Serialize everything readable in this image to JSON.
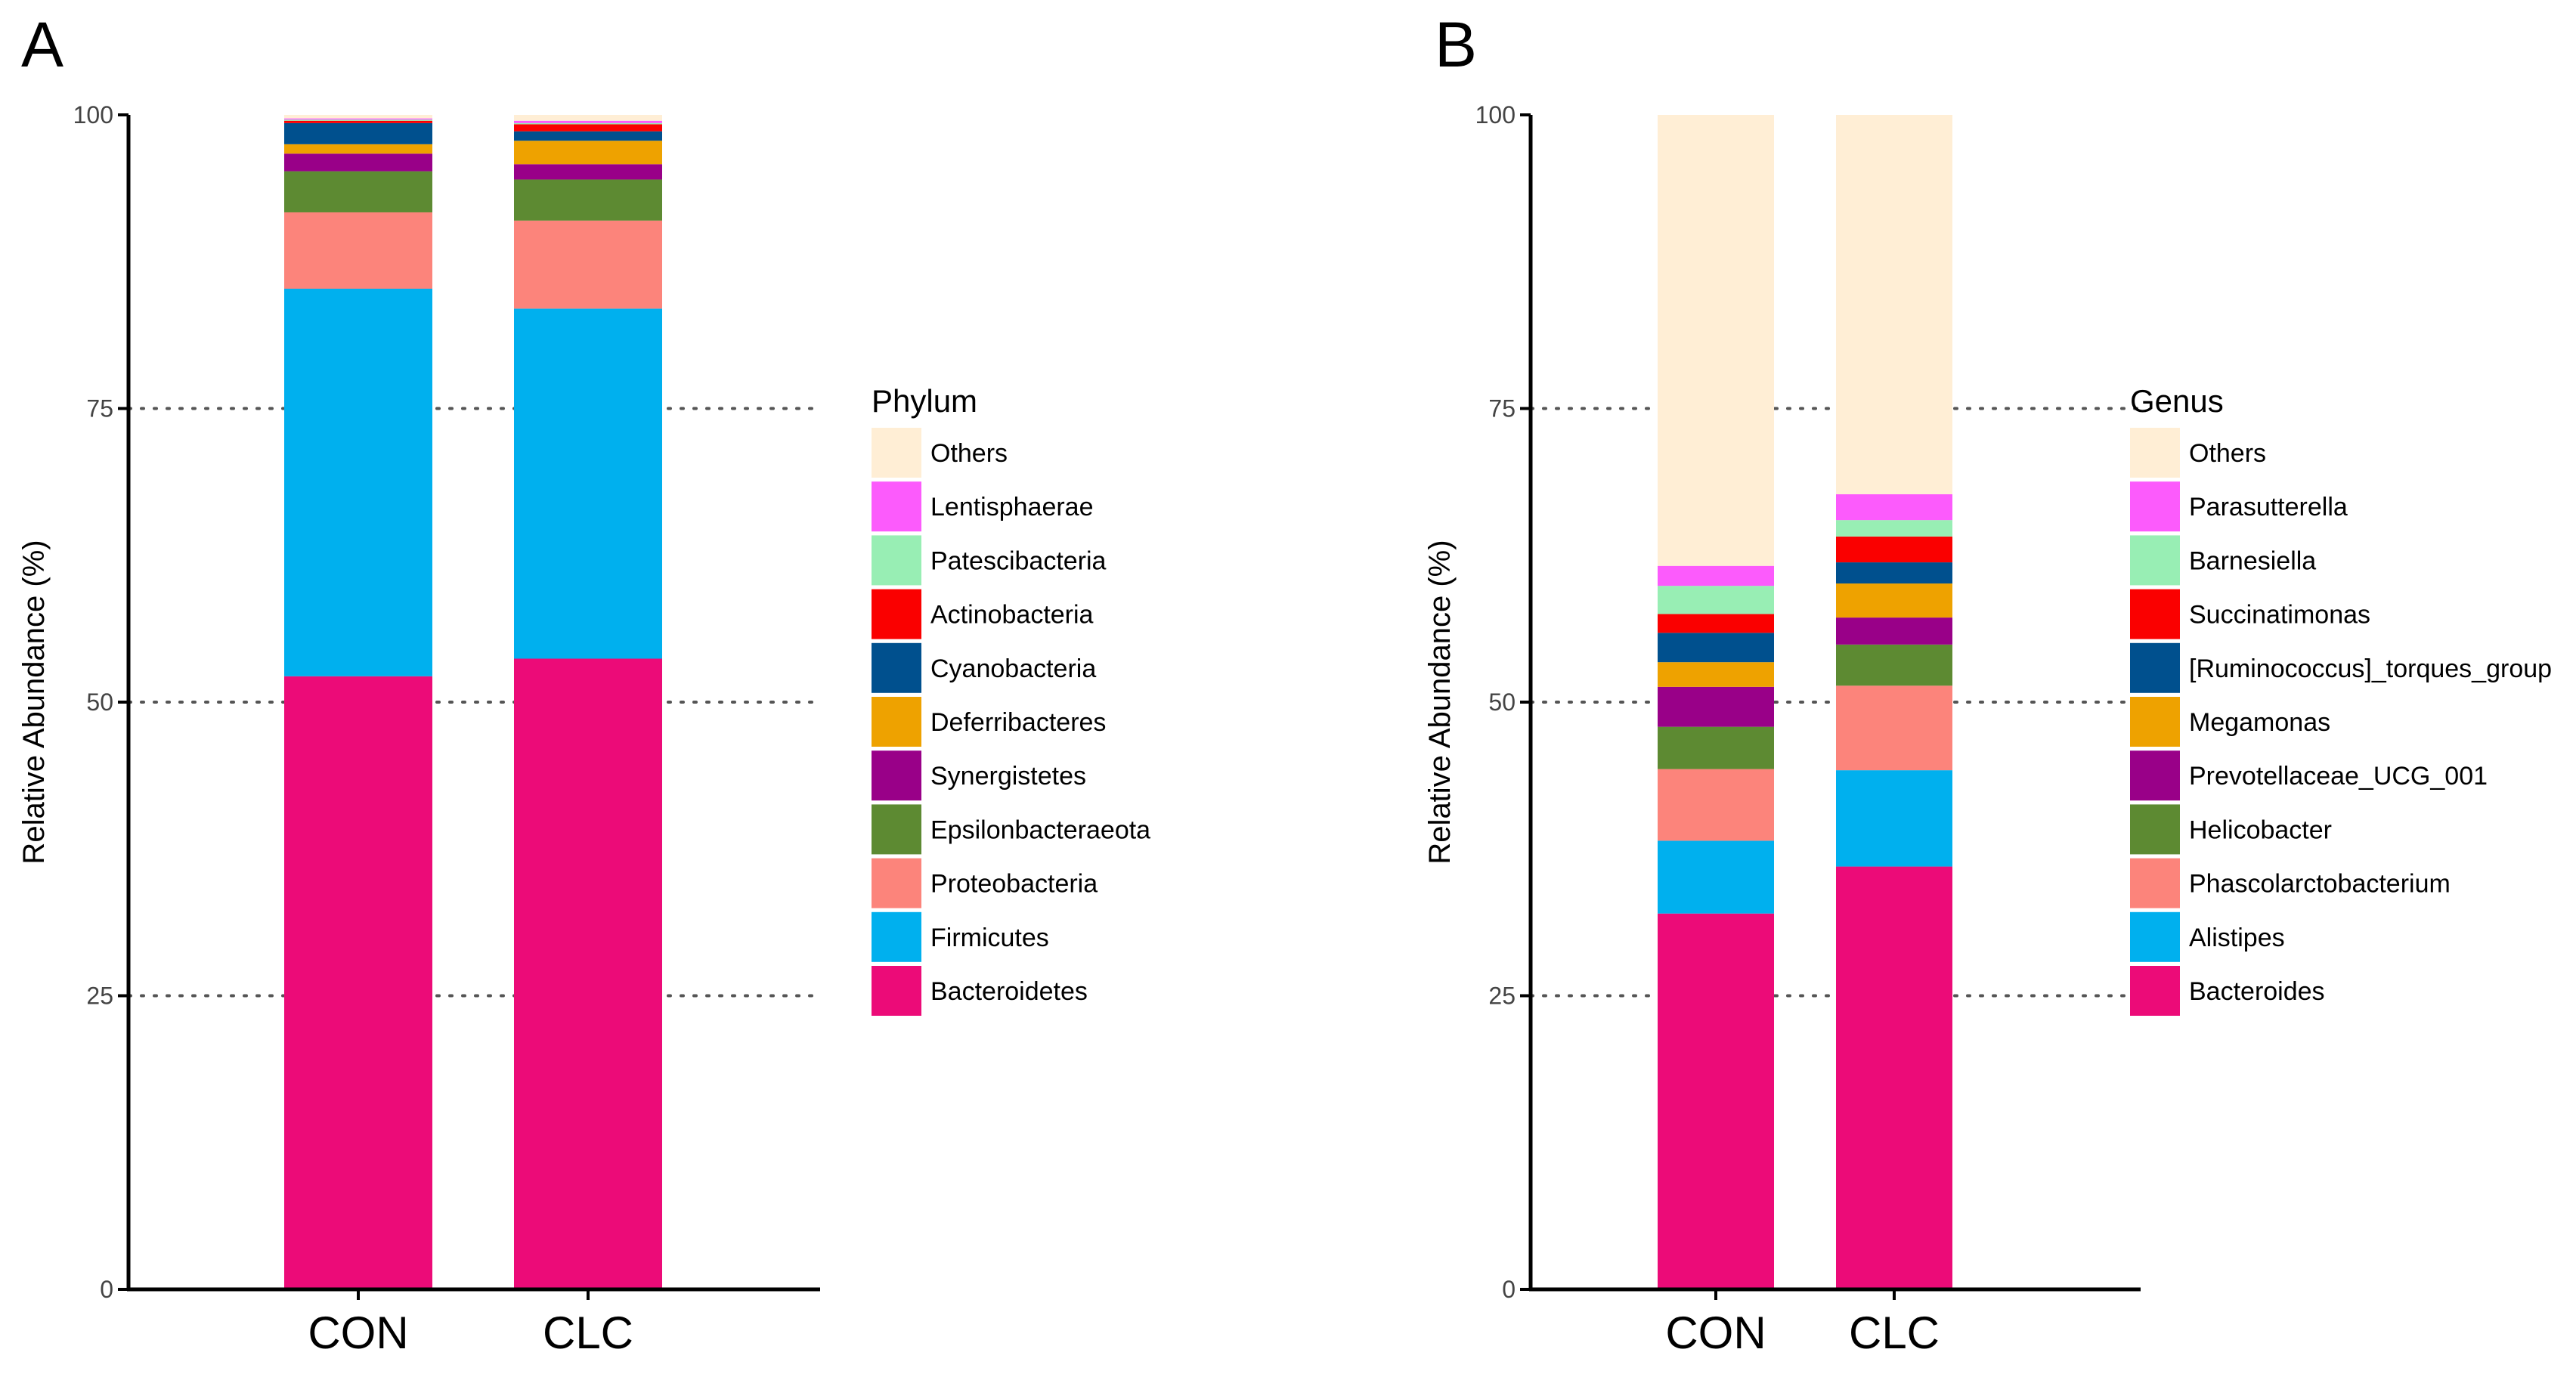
{
  "figure": {
    "panels": [
      {
        "label": "A"
      },
      {
        "label": "B"
      }
    ]
  },
  "chart_data": [
    {
      "type": "bar",
      "stacked": true,
      "panel": "A",
      "ylabel": "Relative Abundance (%)",
      "ylim": [
        0,
        100
      ],
      "yticks": [
        "0",
        "25",
        "50",
        "75",
        "100"
      ],
      "gridlines": [
        25,
        50,
        75
      ],
      "categories": [
        "CON",
        "CLC"
      ],
      "legend_title": "Phylum",
      "series": [
        {
          "name": "Bacteroidetes",
          "color": "#EC0B78",
          "values": [
            52.2,
            53.7
          ]
        },
        {
          "name": "Firmicutes",
          "color": "#00B0EE",
          "values": [
            33.0,
            29.8
          ]
        },
        {
          "name": "Proteobacteria",
          "color": "#FC847B",
          "values": [
            6.5,
            7.5
          ]
        },
        {
          "name": "Epsilonbacteraeota",
          "color": "#5D8A32",
          "values": [
            3.5,
            3.5
          ]
        },
        {
          "name": "Synergistetes",
          "color": "#990088",
          "values": [
            1.5,
            1.3
          ]
        },
        {
          "name": "Deferribacteres",
          "color": "#EEA200",
          "values": [
            0.8,
            2.0
          ]
        },
        {
          "name": "Cyanobacteria",
          "color": "#00508E",
          "values": [
            1.8,
            0.8
          ]
        },
        {
          "name": "Actinobacteria",
          "color": "#FA0000",
          "values": [
            0.2,
            0.6
          ]
        },
        {
          "name": "Patescibacteria",
          "color": "#98EEB4",
          "values": [
            0.1,
            0.1
          ]
        },
        {
          "name": "Lentisphaerae",
          "color": "#FC5BFC",
          "values": [
            0.1,
            0.2
          ]
        },
        {
          "name": "Others",
          "color": "#FFEED5",
          "values": [
            0.3,
            0.5
          ]
        }
      ]
    },
    {
      "type": "bar",
      "stacked": true,
      "panel": "B",
      "ylabel": "Relative Abundance (%)",
      "ylim": [
        0,
        100
      ],
      "yticks": [
        "0",
        "25",
        "50",
        "75",
        "100"
      ],
      "gridlines": [
        25,
        50,
        75
      ],
      "categories": [
        "CON",
        "CLC"
      ],
      "legend_title": "Genus",
      "series": [
        {
          "name": "Bacteroides",
          "color": "#EC0B78",
          "values": [
            32.0,
            36.0
          ]
        },
        {
          "name": "Alistipes",
          "color": "#00B0EE",
          "values": [
            6.2,
            8.2
          ]
        },
        {
          "name": "Phascolarctobacterium",
          "color": "#FC847B",
          "values": [
            6.1,
            7.2
          ]
        },
        {
          "name": "Helicobacter",
          "color": "#5D8A32",
          "values": [
            3.6,
            3.5
          ]
        },
        {
          "name": "Prevotellaceae_UCG_001",
          "color": "#990088",
          "values": [
            3.4,
            2.3
          ]
        },
        {
          "name": "Megamonas",
          "color": "#EEA200",
          "values": [
            2.1,
            2.9
          ]
        },
        {
          "name": "[Ruminococcus]_torques_group",
          "color": "#00508E",
          "values": [
            2.5,
            1.8
          ]
        },
        {
          "name": "Succinatimonas",
          "color": "#FA0000",
          "values": [
            1.6,
            2.2
          ]
        },
        {
          "name": "Barnesiella",
          "color": "#98EEB4",
          "values": [
            2.4,
            1.4
          ]
        },
        {
          "name": "Parasutterella",
          "color": "#FC5BFC",
          "values": [
            1.7,
            2.2
          ]
        },
        {
          "name": "Others",
          "color": "#FFEED5",
          "values": [
            38.4,
            32.3
          ]
        }
      ]
    }
  ]
}
